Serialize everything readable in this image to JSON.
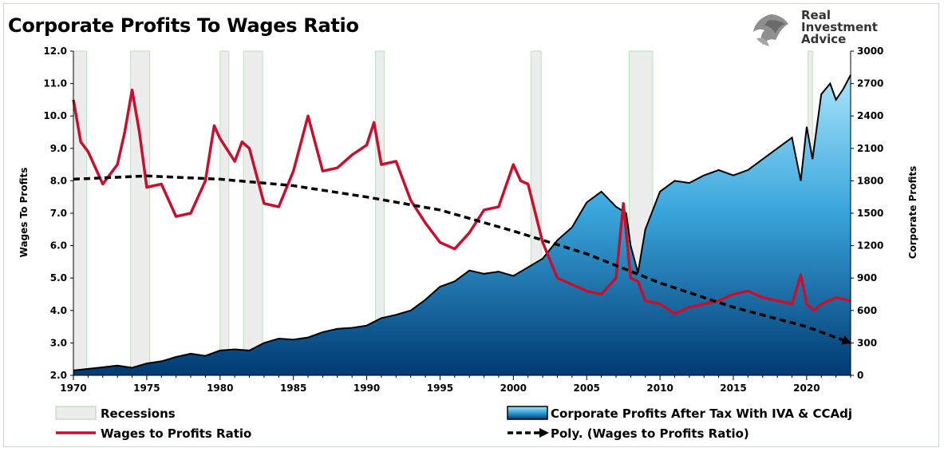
{
  "brand": {
    "line1": "Real",
    "line2": "Investment",
    "line3": "Advice",
    "logo": "eagle-head-logo"
  },
  "chart_data": {
    "type": "line",
    "title": "Corporate Profits To Wages Ratio",
    "ylabel": "Wages To Profits",
    "y2label": "Corporate Profits",
    "xlim": [
      1970,
      2023
    ],
    "ylim": [
      2.0,
      12.0
    ],
    "y2lim": [
      0,
      3000
    ],
    "x_ticks": [
      1970,
      1975,
      1980,
      1985,
      1990,
      1995,
      2000,
      2005,
      2010,
      2015,
      2020
    ],
    "y_ticks": [
      "2.0",
      "3.0",
      "4.0",
      "5.0",
      "6.0",
      "7.0",
      "8.0",
      "9.0",
      "10.0",
      "11.0",
      "12.0"
    ],
    "y2_ticks": [
      "0",
      "300",
      "600",
      "900",
      "1200",
      "1500",
      "1800",
      "2100",
      "2400",
      "2700",
      "3000"
    ],
    "grid": false,
    "legend_position": "bottom",
    "recessions": [
      [
        1970.0,
        1970.9
      ],
      [
        1973.9,
        1975.2
      ],
      [
        1980.0,
        1980.6
      ],
      [
        1981.6,
        1982.9
      ],
      [
        1990.6,
        1991.2
      ],
      [
        2001.2,
        2001.9
      ],
      [
        2007.9,
        2009.5
      ],
      [
        2020.1,
        2020.4
      ]
    ],
    "series": [
      {
        "name": "Corporate Profits After Tax With IVA & CCAdj",
        "type": "area",
        "axis": "right",
        "color_top": "#a8e4fb",
        "color_bottom": "#003a72",
        "x": [
          1970,
          1971,
          1972,
          1973,
          1974,
          1975,
          1976,
          1977,
          1978,
          1979,
          1980,
          1981,
          1982,
          1983,
          1984,
          1985,
          1986,
          1987,
          1988,
          1989,
          1990,
          1991,
          1992,
          1993,
          1994,
          1995,
          1996,
          1997,
          1998,
          1999,
          2000,
          2001,
          2002,
          2003,
          2004,
          2005,
          2006,
          2007,
          2007.7,
          2008,
          2008.5,
          2009,
          2010,
          2011,
          2012,
          2013,
          2014,
          2015,
          2016,
          2017,
          2018,
          2019,
          2019.6,
          2020,
          2020.4,
          2021,
          2021.6,
          2022,
          2022.5,
          2023
        ],
        "values": [
          45,
          60,
          75,
          90,
          70,
          110,
          130,
          170,
          200,
          180,
          230,
          240,
          230,
          300,
          340,
          330,
          350,
          400,
          430,
          440,
          460,
          530,
          560,
          600,
          700,
          820,
          870,
          970,
          940,
          960,
          920,
          1000,
          1080,
          1250,
          1370,
          1600,
          1700,
          1560,
          1500,
          1200,
          950,
          1350,
          1700,
          1800,
          1780,
          1850,
          1900,
          1850,
          1900,
          2000,
          2100,
          2200,
          1800,
          2300,
          2000,
          2600,
          2700,
          2550,
          2650,
          2780
        ]
      },
      {
        "name": "Wages to Profits Ratio",
        "type": "line",
        "axis": "left",
        "color": "#c8102e",
        "x": [
          1970,
          1970.5,
          1971,
          1972,
          1973,
          1973.5,
          1974,
          1974.5,
          1975,
          1976,
          1977,
          1978,
          1979,
          1979.6,
          1980,
          1981,
          1981.5,
          1982,
          1983,
          1984,
          1985,
          1986,
          1987,
          1988,
          1989,
          1990,
          1990.5,
          1991,
          1992,
          1993,
          1994,
          1995,
          1996,
          1997,
          1998,
          1999,
          2000,
          2000.5,
          2001,
          2002,
          2003,
          2004,
          2005,
          2006,
          2007,
          2007.5,
          2008,
          2008.5,
          2009,
          2010,
          2011,
          2012,
          2013,
          2014,
          2015,
          2016,
          2017,
          2018,
          2019,
          2019.6,
          2020,
          2020.5,
          2021,
          2022,
          2023
        ],
        "values": [
          10.5,
          9.2,
          8.9,
          7.9,
          8.5,
          9.5,
          10.8,
          9.5,
          7.8,
          7.9,
          6.9,
          7.0,
          8.0,
          9.7,
          9.3,
          8.6,
          9.2,
          9.0,
          7.3,
          7.2,
          8.3,
          10.0,
          8.3,
          8.4,
          8.8,
          9.1,
          9.8,
          8.5,
          8.6,
          7.4,
          6.7,
          6.1,
          5.9,
          6.4,
          7.1,
          7.2,
          8.5,
          8.0,
          7.9,
          6.1,
          5.0,
          4.8,
          4.6,
          4.5,
          5.0,
          7.3,
          5.0,
          4.9,
          4.3,
          4.2,
          3.9,
          4.1,
          4.2,
          4.3,
          4.5,
          4.6,
          4.4,
          4.3,
          4.2,
          5.1,
          4.2,
          4.0,
          4.2,
          4.4,
          4.3
        ]
      },
      {
        "name": "Poly. (Wages to Profits Ratio)",
        "type": "line",
        "axis": "left",
        "color": "#000000",
        "dashed": true,
        "x": [
          1970,
          1975,
          1980,
          1985,
          1990,
          1995,
          2000,
          2005,
          2010,
          2015,
          2020,
          2023
        ],
        "values": [
          8.05,
          8.15,
          8.05,
          7.85,
          7.5,
          7.1,
          6.45,
          5.75,
          4.85,
          4.1,
          3.5,
          3.0
        ]
      }
    ],
    "legend": {
      "recessions": "Recessions",
      "profits": "Corporate Profits After Tax With IVA & CCAdj",
      "ratio": "Wages to Profits Ratio",
      "poly": "Poly. (Wages to Profits Ratio)"
    }
  }
}
